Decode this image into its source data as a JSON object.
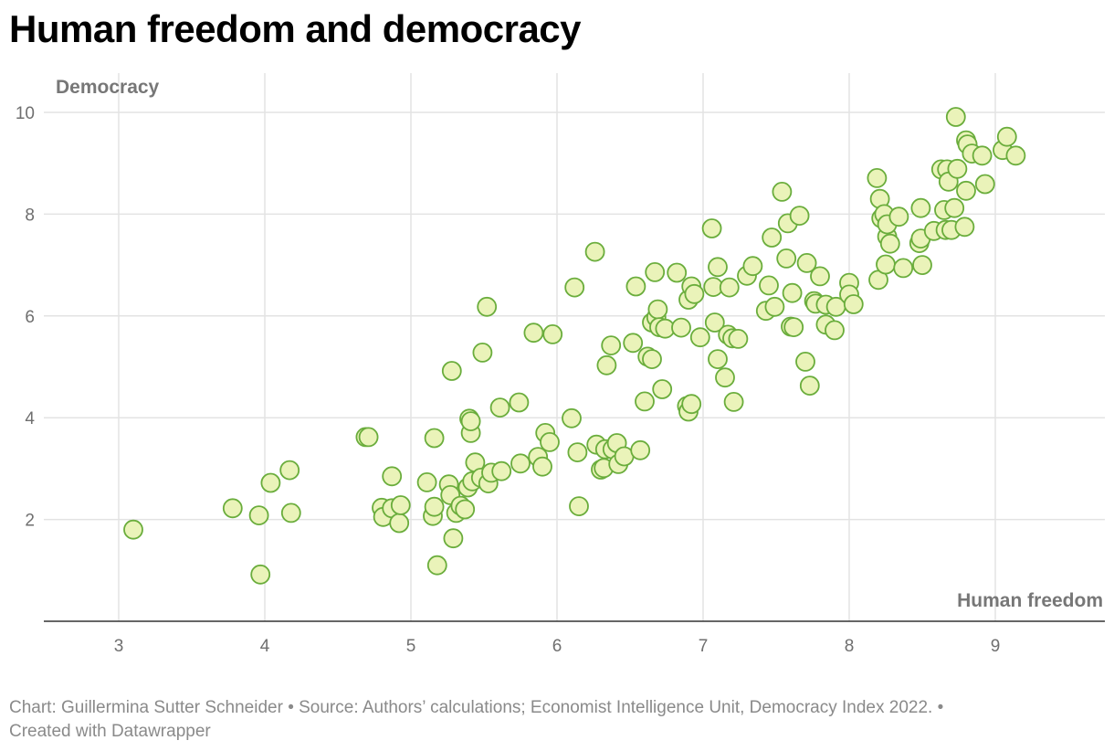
{
  "title": "Human freedom and democracy",
  "footer": {
    "credit": "Chart: Guillermina Sutter Schneider • Source: Authors’ calculations; Economist Intelligence Unit, Democracy Index 2022. •",
    "created": "Created with Datawrapper"
  },
  "colors": {
    "point_fill": "#eaf3b9",
    "point_stroke": "#6aad3c",
    "grid": "#e3e3e3",
    "axis": "#333333"
  },
  "chart_data": {
    "type": "scatter",
    "title": "Human freedom and democracy",
    "xlabel": "Human freedom",
    "ylabel": "Democracy",
    "xlim": [
      2.5,
      9.75
    ],
    "ylim": [
      0,
      10.7
    ],
    "x_ticks": [
      3,
      4,
      5,
      6,
      7,
      8,
      9
    ],
    "y_ticks": [
      2,
      4,
      6,
      8,
      10
    ],
    "grid": true,
    "legend": "none",
    "points": [
      [
        3.1,
        1.8
      ],
      [
        3.78,
        2.22
      ],
      [
        3.96,
        2.08
      ],
      [
        3.97,
        0.92
      ],
      [
        4.04,
        2.72
      ],
      [
        4.17,
        2.97
      ],
      [
        4.18,
        2.13
      ],
      [
        4.69,
        3.62
      ],
      [
        4.71,
        3.62
      ],
      [
        4.8,
        2.23
      ],
      [
        4.81,
        2.05
      ],
      [
        4.87,
        2.85
      ],
      [
        4.87,
        2.22
      ],
      [
        4.92,
        1.93
      ],
      [
        4.93,
        2.28
      ],
      [
        5.11,
        2.73
      ],
      [
        5.15,
        2.07
      ],
      [
        5.16,
        3.6
      ],
      [
        5.16,
        2.25
      ],
      [
        5.18,
        1.1
      ],
      [
        5.26,
        2.69
      ],
      [
        5.27,
        2.48
      ],
      [
        5.28,
        4.92
      ],
      [
        5.29,
        1.63
      ],
      [
        5.31,
        2.13
      ],
      [
        5.34,
        2.27
      ],
      [
        5.37,
        2.2
      ],
      [
        5.39,
        2.63
      ],
      [
        5.4,
        3.98
      ],
      [
        5.41,
        3.7
      ],
      [
        5.41,
        3.93
      ],
      [
        5.42,
        2.75
      ],
      [
        5.44,
        3.12
      ],
      [
        5.48,
        2.82
      ],
      [
        5.49,
        5.28
      ],
      [
        5.52,
        6.18
      ],
      [
        5.53,
        2.71
      ],
      [
        5.55,
        2.92
      ],
      [
        5.61,
        4.2
      ],
      [
        5.62,
        2.95
      ],
      [
        5.74,
        4.3
      ],
      [
        5.75,
        3.1
      ],
      [
        5.84,
        5.67
      ],
      [
        5.87,
        3.23
      ],
      [
        5.9,
        3.04
      ],
      [
        5.92,
        3.7
      ],
      [
        5.95,
        3.52
      ],
      [
        5.97,
        5.64
      ],
      [
        6.1,
        3.99
      ],
      [
        6.12,
        6.56
      ],
      [
        6.14,
        3.32
      ],
      [
        6.15,
        2.26
      ],
      [
        6.26,
        7.26
      ],
      [
        6.27,
        3.47
      ],
      [
        6.3,
        2.98
      ],
      [
        6.32,
        3.01
      ],
      [
        6.33,
        3.38
      ],
      [
        6.34,
        5.03
      ],
      [
        6.37,
        5.42
      ],
      [
        6.38,
        3.38
      ],
      [
        6.41,
        3.5
      ],
      [
        6.42,
        3.09
      ],
      [
        6.46,
        3.24
      ],
      [
        6.52,
        5.47
      ],
      [
        6.54,
        6.58
      ],
      [
        6.57,
        3.36
      ],
      [
        6.6,
        4.32
      ],
      [
        6.62,
        5.2
      ],
      [
        6.65,
        5.87
      ],
      [
        6.65,
        5.15
      ],
      [
        6.67,
        6.86
      ],
      [
        6.68,
        5.97
      ],
      [
        6.69,
        6.13
      ],
      [
        6.7,
        5.78
      ],
      [
        6.72,
        4.56
      ],
      [
        6.74,
        5.75
      ],
      [
        6.82,
        6.85
      ],
      [
        6.85,
        5.77
      ],
      [
        6.89,
        4.23
      ],
      [
        6.9,
        6.32
      ],
      [
        6.9,
        4.12
      ],
      [
        6.92,
        6.58
      ],
      [
        6.92,
        4.27
      ],
      [
        6.94,
        6.43
      ],
      [
        6.98,
        5.58
      ],
      [
        7.06,
        7.72
      ],
      [
        7.07,
        6.57
      ],
      [
        7.08,
        5.87
      ],
      [
        7.1,
        5.15
      ],
      [
        7.1,
        6.96
      ],
      [
        7.15,
        4.79
      ],
      [
        7.17,
        5.63
      ],
      [
        7.18,
        6.56
      ],
      [
        7.2,
        5.56
      ],
      [
        7.21,
        4.31
      ],
      [
        7.24,
        5.55
      ],
      [
        7.3,
        6.79
      ],
      [
        7.34,
        6.98
      ],
      [
        7.43,
        6.1
      ],
      [
        7.45,
        6.6
      ],
      [
        7.47,
        7.54
      ],
      [
        7.49,
        6.18
      ],
      [
        7.54,
        8.44
      ],
      [
        7.57,
        7.13
      ],
      [
        7.58,
        7.82
      ],
      [
        7.6,
        5.79
      ],
      [
        7.61,
        6.45
      ],
      [
        7.62,
        5.78
      ],
      [
        7.66,
        7.97
      ],
      [
        7.7,
        5.1
      ],
      [
        7.71,
        7.04
      ],
      [
        7.73,
        4.63
      ],
      [
        7.76,
        6.29
      ],
      [
        7.77,
        6.24
      ],
      [
        7.8,
        6.78
      ],
      [
        7.84,
        6.22
      ],
      [
        7.84,
        5.83
      ],
      [
        7.9,
        5.72
      ],
      [
        7.91,
        6.18
      ],
      [
        8.0,
        6.65
      ],
      [
        8.0,
        6.42
      ],
      [
        8.03,
        6.23
      ],
      [
        8.19,
        8.71
      ],
      [
        8.2,
        6.71
      ],
      [
        8.21,
        8.3
      ],
      [
        8.22,
        7.92
      ],
      [
        8.24,
        8.0
      ],
      [
        8.25,
        7.01
      ],
      [
        8.26,
        7.56
      ],
      [
        8.26,
        7.8
      ],
      [
        8.28,
        7.42
      ],
      [
        8.34,
        7.95
      ],
      [
        8.37,
        6.94
      ],
      [
        8.48,
        7.43
      ],
      [
        8.49,
        8.12
      ],
      [
        8.49,
        7.52
      ],
      [
        8.5,
        7.0
      ],
      [
        8.58,
        7.67
      ],
      [
        8.63,
        8.88
      ],
      [
        8.65,
        8.08
      ],
      [
        8.66,
        7.69
      ],
      [
        8.67,
        8.88
      ],
      [
        8.68,
        8.64
      ],
      [
        8.7,
        7.69
      ],
      [
        8.72,
        8.12
      ],
      [
        8.73,
        9.91
      ],
      [
        8.74,
        8.89
      ],
      [
        8.79,
        7.75
      ],
      [
        8.8,
        9.45
      ],
      [
        8.8,
        8.46
      ],
      [
        8.81,
        9.37
      ],
      [
        8.84,
        9.19
      ],
      [
        8.91,
        9.15
      ],
      [
        8.93,
        8.59
      ],
      [
        9.05,
        9.26
      ],
      [
        9.08,
        9.52
      ],
      [
        9.14,
        9.15
      ]
    ]
  }
}
